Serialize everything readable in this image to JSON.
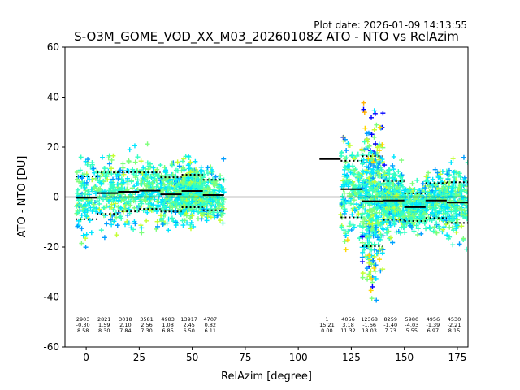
{
  "plot_date": "Plot date: 2026-01-09 14:13:55",
  "chart_data": {
    "type": "scatter",
    "title": "S-O3M_GOME_VOD_XX_M03_20260108Z ATO - NTO vs RelAzim",
    "xlabel": "RelAzim [degree]",
    "ylabel": "ATO - NTO [DU]",
    "xlim": [
      -10,
      180
    ],
    "ylim": [
      -60,
      60
    ],
    "xticks": [
      0,
      25,
      50,
      75,
      100,
      125,
      150,
      175
    ],
    "yticks": [
      -60,
      -40,
      -20,
      0,
      20,
      40,
      60
    ],
    "marker": "+",
    "colors": [
      "#0000ff",
      "#009dff",
      "#00e6ff",
      "#33ffc3",
      "#7dff7a",
      "#c3ff33",
      "#ffd700",
      "#ffb000"
    ],
    "zero_line": 0,
    "bins": [
      {
        "x": 0,
        "count": "2903",
        "mean": "-0.30",
        "std": "8.58"
      },
      {
        "x": 10,
        "count": "2821",
        "mean": "1.59",
        "std": "8.30"
      },
      {
        "x": 20,
        "count": "3018",
        "mean": "2.10",
        "std": "7.84"
      },
      {
        "x": 30,
        "count": "3581",
        "mean": "2.56",
        "std": "7.30"
      },
      {
        "x": 40,
        "count": "4983",
        "mean": "1.08",
        "std": "6.85"
      },
      {
        "x": 50,
        "count": "13917",
        "mean": "2.45",
        "std": "6.50"
      },
      {
        "x": 60,
        "count": "4707",
        "mean": "0.82",
        "std": "6.11"
      },
      {
        "x": 115,
        "count": "1",
        "mean": "15.21",
        "std": "0.00"
      },
      {
        "x": 125,
        "count": "4056",
        "mean": "3.18",
        "std": "11.32"
      },
      {
        "x": 135,
        "count": "12368",
        "mean": "-1.66",
        "std": "18.03"
      },
      {
        "x": 145,
        "count": "8259",
        "mean": "-1.40",
        "std": "7.73"
      },
      {
        "x": 155,
        "count": "5980",
        "mean": "-4.03",
        "std": "5.55"
      },
      {
        "x": 165,
        "count": "4956",
        "mean": "-1.39",
        "std": "6.97"
      },
      {
        "x": 175,
        "count": "4530",
        "mean": "-2.21",
        "std": "8.15"
      }
    ]
  }
}
